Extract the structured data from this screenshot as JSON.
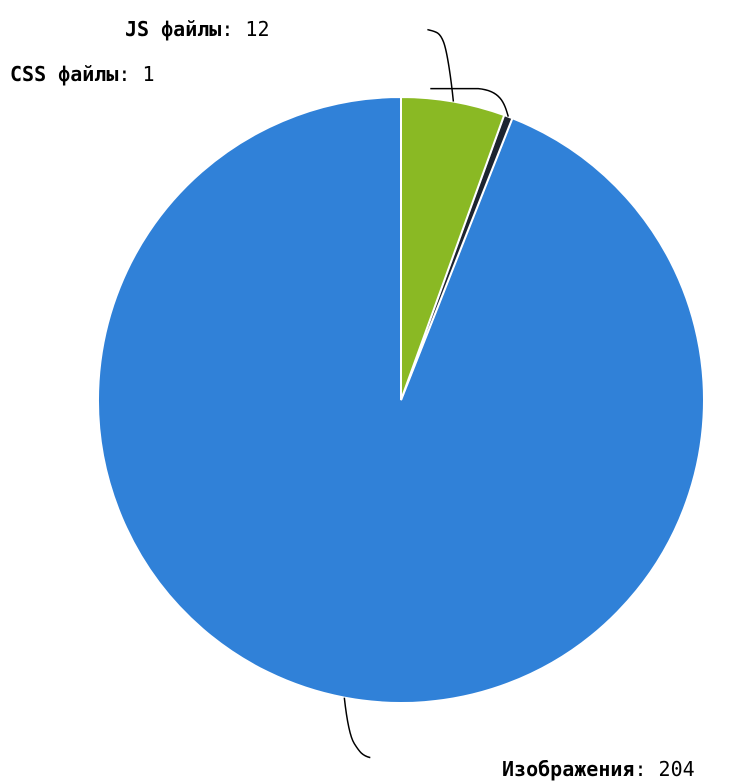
{
  "chart_data": {
    "type": "pie",
    "title": "",
    "slices": [
      {
        "label": "Изображения",
        "value": 204,
        "color": "#3081d8"
      },
      {
        "label": "CSS файлы",
        "value": 1,
        "color": "#1d2430"
      },
      {
        "label": "JS файлы",
        "value": 12,
        "color": "#8ab924"
      }
    ],
    "start_angle": "12 o'clock",
    "direction": "counterclockwise",
    "labels_format": "name: value",
    "legend": "none"
  }
}
